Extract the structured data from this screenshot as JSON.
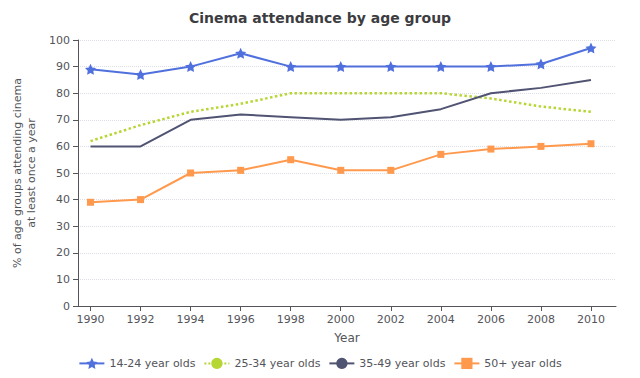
{
  "chart_data": {
    "type": "line",
    "title": "Cinema attendance by age group",
    "xlabel": "Year",
    "ylabel": "% of age groups attending cinema\nat least once a year",
    "x": [
      1990,
      1992,
      1994,
      1996,
      1998,
      2000,
      2002,
      2004,
      2006,
      2008,
      2010
    ],
    "series": [
      {
        "name": "14-24 year olds",
        "values": [
          89,
          87,
          90,
          95,
          90,
          90,
          90,
          90,
          90,
          91,
          97
        ],
        "line_style": "solid",
        "marker": "star"
      },
      {
        "name": "25-34 year olds",
        "values": [
          62,
          68,
          73,
          76,
          80,
          80,
          80,
          80,
          78,
          75,
          73
        ],
        "line_style": "dotted"
      },
      {
        "name": "35-49 year olds",
        "values": [
          60,
          60,
          70,
          72,
          71,
          70,
          71,
          74,
          80,
          82,
          85
        ],
        "line_style": "solid"
      },
      {
        "name": "50+ year olds",
        "values": [
          39,
          40,
          50,
          51,
          55,
          51,
          51,
          57,
          59,
          60,
          61
        ],
        "line_style": "solid",
        "marker": "square"
      }
    ],
    "xlim": [
      1989.5,
      2011
    ],
    "xticks": [
      1990,
      1992,
      1994,
      1996,
      1998,
      2000,
      2002,
      2004,
      2006,
      2008,
      2010
    ],
    "ylim": [
      0,
      100
    ],
    "yticks": [
      0,
      10,
      20,
      30,
      40,
      50,
      60,
      70,
      80,
      90,
      100
    ],
    "grid": true,
    "legend": "bottom"
  }
}
